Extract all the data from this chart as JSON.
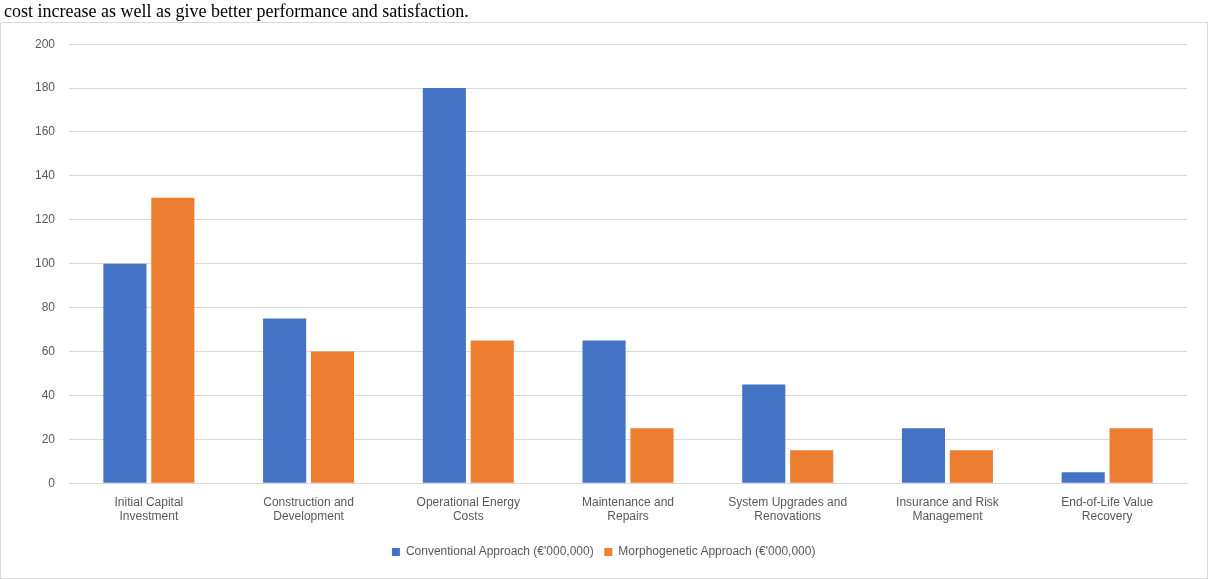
{
  "chart_data": {
    "type": "bar",
    "annotations": [
      "cost increase as well as give better performance and satisfaction."
    ],
    "categories": [
      "Initial Capital Investment",
      "Construction and Development",
      "Operational Energy Costs",
      "Maintenance and Repairs",
      "System Upgrades and Renovations",
      "Insurance and Risk Management",
      "End-of-Life Value Recovery"
    ],
    "series": [
      {
        "name": "Conventional Approach (€'000,000)",
        "color": "#4472c4",
        "values": [
          100,
          75,
          180,
          65,
          45,
          25,
          5
        ]
      },
      {
        "name": "Morphogenetic Approach (€'000,000)",
        "color": "#ed7d31",
        "values": [
          130,
          60,
          65,
          25,
          15,
          15,
          25
        ]
      }
    ],
    "ylim": [
      0,
      200
    ],
    "yticks": [
      0,
      20,
      40,
      60,
      80,
      100,
      120,
      140,
      160,
      180,
      200
    ],
    "grid": "y",
    "legend": "bottom"
  }
}
